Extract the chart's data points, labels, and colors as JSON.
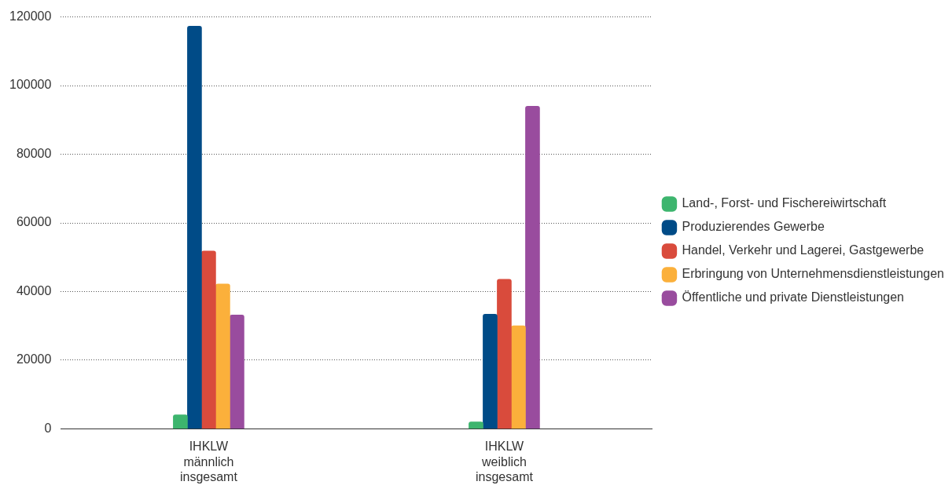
{
  "chart_data": {
    "type": "bar",
    "categories": [
      "IHKLW männlich insgesamt",
      "IHKLW weiblich insgesamt"
    ],
    "series": [
      {
        "name": "Land-, Forst- und Fischereiwirtschaft",
        "color": "#3db56e",
        "values": [
          4100,
          2000
        ]
      },
      {
        "name": "Produzierendes Gewerbe",
        "color": "#004b87",
        "values": [
          117300,
          33400
        ]
      },
      {
        "name": "Handel, Verkehr und Lagerei, Gastgewerbe",
        "color": "#d94b3c",
        "values": [
          51800,
          43600
        ]
      },
      {
        "name": "Erbringung von Unternehmensdienstleistungen",
        "color": "#fbb03b",
        "values": [
          42200,
          30000
        ]
      },
      {
        "name": "Öffentliche und private Dienstleistungen",
        "color": "#994c9e",
        "values": [
          33200,
          94000
        ]
      }
    ],
    "ylim": [
      0,
      120000
    ],
    "yticks": [
      0,
      20000,
      40000,
      60000,
      80000,
      100000,
      120000
    ],
    "grid": "y",
    "legend": "right"
  }
}
